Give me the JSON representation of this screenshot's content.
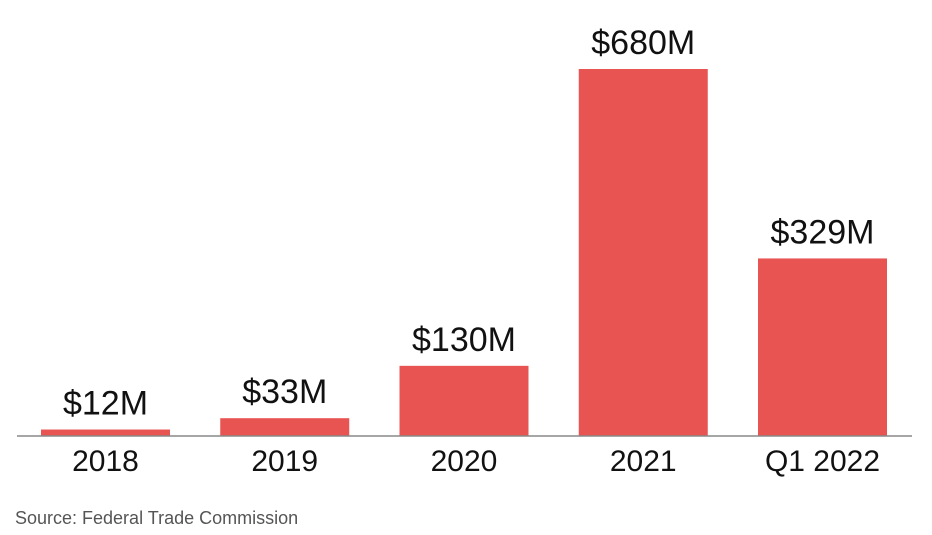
{
  "chart_data": {
    "type": "bar",
    "categories": [
      "2018",
      "2019",
      "2020",
      "2021",
      "Q1 2022"
    ],
    "values": [
      12,
      33,
      130,
      680,
      329
    ],
    "data_labels": [
      "$12M",
      "$33M",
      "$130M",
      "$680M",
      "$329M"
    ],
    "ylim": [
      0,
      680
    ],
    "grid": false,
    "legend": "none",
    "bar_color": "#E85452",
    "axis_color": "#888888"
  },
  "source": "Source: Federal Trade Commission"
}
